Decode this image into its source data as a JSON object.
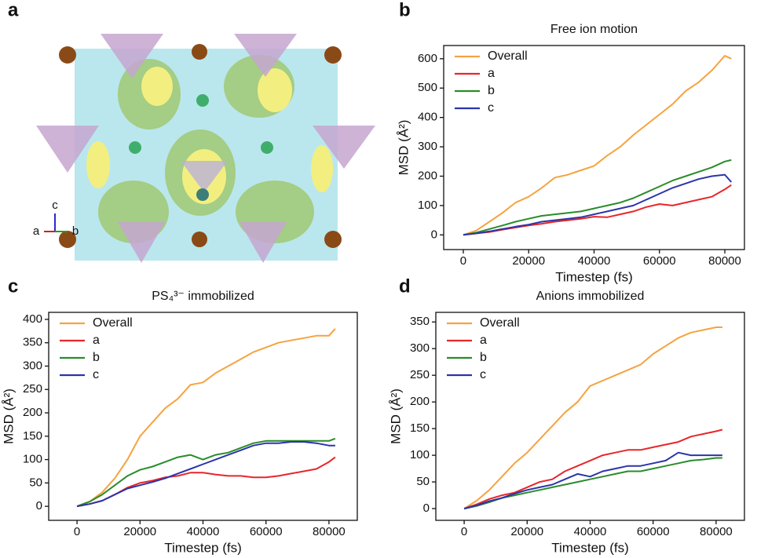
{
  "panel_a": {
    "panel_label": "a",
    "axis_labels": [
      "c",
      "a",
      "b"
    ]
  },
  "chart_data": [
    {
      "type": "line",
      "panel_label": "b",
      "title": "Free ion motion",
      "x_label": "Timestep (fs)",
      "y_label": "MSD (Å²)",
      "x": [
        0,
        4000,
        8000,
        12000,
        16000,
        20000,
        24000,
        28000,
        32000,
        36000,
        40000,
        44000,
        48000,
        52000,
        56000,
        60000,
        64000,
        68000,
        72000,
        76000,
        80000,
        82000
      ],
      "series": [
        {
          "name": "Overall",
          "color": "#f5a340",
          "values": [
            0,
            15,
            45,
            75,
            110,
            130,
            160,
            195,
            205,
            220,
            235,
            270,
            300,
            340,
            375,
            410,
            445,
            490,
            520,
            560,
            610,
            600
          ]
        },
        {
          "name": "a",
          "color": "#e8262a",
          "values": [
            0,
            5,
            10,
            18,
            25,
            32,
            38,
            45,
            50,
            55,
            62,
            60,
            70,
            80,
            95,
            105,
            100,
            110,
            120,
            130,
            155,
            170
          ]
        },
        {
          "name": "b",
          "color": "#2a8c2a",
          "values": [
            0,
            8,
            20,
            32,
            45,
            55,
            65,
            70,
            75,
            80,
            90,
            100,
            110,
            125,
            145,
            165,
            185,
            200,
            215,
            230,
            250,
            255
          ]
        },
        {
          "name": "c",
          "color": "#2b35a8",
          "values": [
            0,
            5,
            12,
            20,
            28,
            35,
            45,
            50,
            55,
            60,
            70,
            80,
            90,
            100,
            120,
            140,
            160,
            175,
            190,
            200,
            205,
            180
          ]
        }
      ],
      "xlim": [
        -6000,
        86000
      ],
      "xticks": [
        0,
        20000,
        40000,
        60000,
        80000
      ],
      "ylim": [
        -50,
        645
      ],
      "yticks": [
        0,
        100,
        200,
        300,
        400,
        500,
        600
      ],
      "legend": "upper left"
    },
    {
      "type": "line",
      "panel_label": "c",
      "title": "PS₄³⁻ immobilized",
      "x_label": "Timestep (fs)",
      "y_label": "MSD (Å²)",
      "x": [
        0,
        4000,
        8000,
        12000,
        16000,
        20000,
        24000,
        28000,
        32000,
        36000,
        40000,
        44000,
        48000,
        52000,
        56000,
        60000,
        64000,
        68000,
        72000,
        76000,
        80000,
        82000
      ],
      "series": [
        {
          "name": "Overall",
          "color": "#f5a340",
          "values": [
            0,
            10,
            30,
            60,
            100,
            150,
            180,
            210,
            230,
            260,
            265,
            285,
            300,
            315,
            330,
            340,
            350,
            355,
            360,
            365,
            365,
            380
          ]
        },
        {
          "name": "a",
          "color": "#e8262a",
          "values": [
            0,
            5,
            12,
            25,
            40,
            50,
            55,
            62,
            65,
            72,
            72,
            68,
            65,
            65,
            62,
            62,
            65,
            70,
            75,
            80,
            95,
            105
          ]
        },
        {
          "name": "b",
          "color": "#2a8c2a",
          "values": [
            0,
            10,
            25,
            45,
            65,
            78,
            85,
            95,
            105,
            110,
            100,
            110,
            115,
            125,
            135,
            140,
            140,
            140,
            140,
            140,
            140,
            145
          ]
        },
        {
          "name": "c",
          "color": "#2b35a8",
          "values": [
            0,
            5,
            12,
            25,
            38,
            45,
            52,
            60,
            70,
            80,
            90,
            100,
            110,
            120,
            130,
            135,
            135,
            138,
            138,
            135,
            130,
            130
          ]
        }
      ],
      "xlim": [
        -9000,
        89000
      ],
      "xticks": [
        0,
        20000,
        40000,
        60000,
        80000
      ],
      "ylim": [
        -30,
        415
      ],
      "yticks": [
        0,
        50,
        100,
        150,
        200,
        250,
        300,
        350,
        400
      ],
      "legend": "upper left"
    },
    {
      "type": "line",
      "panel_label": "d",
      "title": "Anions immobilized",
      "x_label": "Timestep (fs)",
      "y_label": "MSD (Å²)",
      "x": [
        0,
        4000,
        8000,
        12000,
        16000,
        20000,
        24000,
        28000,
        32000,
        36000,
        40000,
        44000,
        48000,
        52000,
        56000,
        60000,
        64000,
        68000,
        72000,
        76000,
        80000,
        82000
      ],
      "series": [
        {
          "name": "Overall",
          "color": "#f5a340",
          "values": [
            0,
            15,
            35,
            60,
            85,
            105,
            130,
            155,
            180,
            200,
            230,
            240,
            250,
            260,
            270,
            290,
            305,
            320,
            330,
            335,
            340,
            340
          ]
        },
        {
          "name": "a",
          "color": "#e8262a",
          "values": [
            0,
            8,
            18,
            25,
            30,
            40,
            50,
            55,
            70,
            80,
            90,
            100,
            105,
            110,
            110,
            115,
            120,
            125,
            135,
            140,
            145,
            148
          ]
        },
        {
          "name": "b",
          "color": "#2a8c2a",
          "values": [
            0,
            5,
            12,
            20,
            25,
            30,
            35,
            40,
            45,
            50,
            55,
            60,
            65,
            70,
            70,
            75,
            80,
            85,
            90,
            92,
            95,
            95
          ]
        },
        {
          "name": "c",
          "color": "#2b35a8",
          "values": [
            0,
            6,
            14,
            20,
            28,
            35,
            40,
            45,
            55,
            65,
            60,
            70,
            75,
            80,
            80,
            85,
            90,
            105,
            100,
            100,
            100,
            100
          ]
        }
      ],
      "xlim": [
        -9000,
        89000
      ],
      "xticks": [
        0,
        20000,
        40000,
        60000,
        80000
      ],
      "ylim": [
        -22,
        368
      ],
      "yticks": [
        0,
        50,
        100,
        150,
        200,
        250,
        300,
        350
      ],
      "legend": "upper left"
    }
  ]
}
